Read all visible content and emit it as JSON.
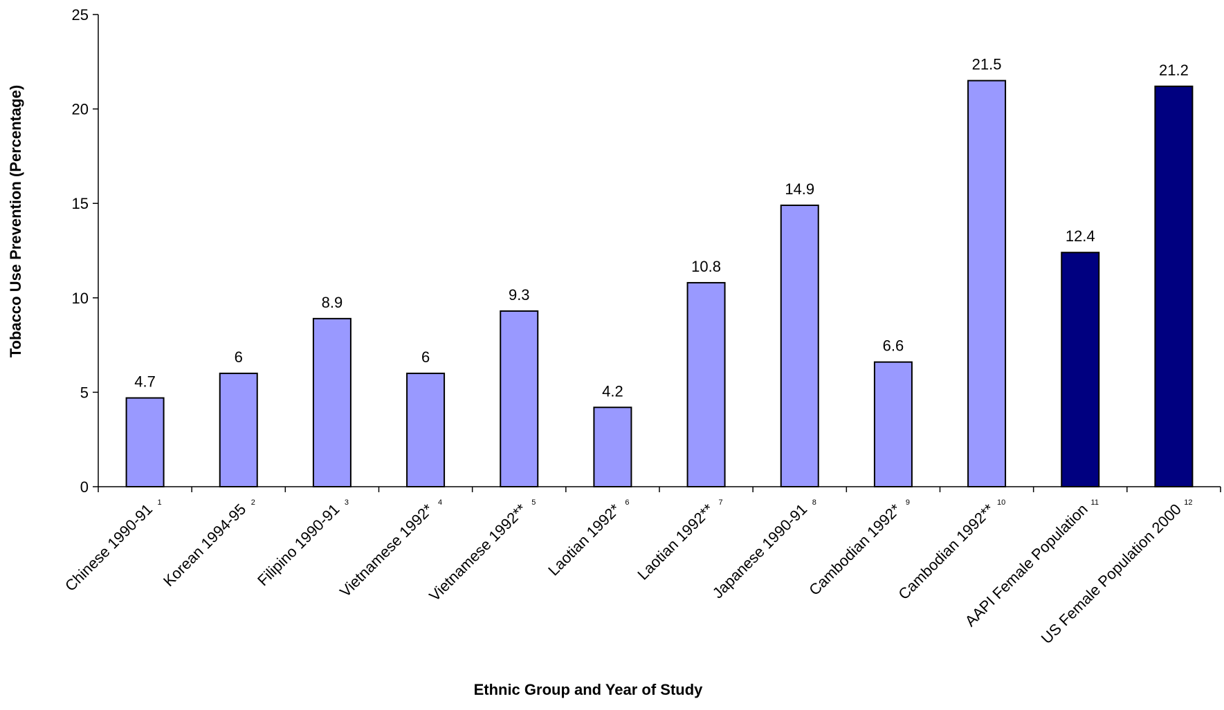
{
  "chart_data": {
    "type": "bar",
    "categories": [
      "Chinese 1990-91",
      "Korean 1994-95",
      "Filipino 1990-91",
      "Vietnamese 1992*",
      "Vietnamese 1992**",
      "Laotian 1992*",
      "Laotian 1992**",
      "Japanese 1990-91",
      "Cambodian 1992*",
      "Cambodian 1992**",
      "AAPI Female Population",
      "US Female Population 2000"
    ],
    "footnotes": [
      "1",
      "2",
      "3",
      "4",
      "5",
      "6",
      "7",
      "8",
      "9",
      "10",
      "11",
      "12"
    ],
    "values": [
      4.7,
      6,
      8.9,
      6,
      9.3,
      4.2,
      10.8,
      14.9,
      6.6,
      21.5,
      12.4,
      21.2
    ],
    "value_labels": [
      "4.7",
      "6",
      "8.9",
      "6",
      "9.3",
      "4.2",
      "10.8",
      "14.9",
      "6.6",
      "21.5",
      "12.4",
      "21.2"
    ],
    "bar_colors": [
      "#9999ff",
      "#9999ff",
      "#9999ff",
      "#9999ff",
      "#9999ff",
      "#9999ff",
      "#9999ff",
      "#9999ff",
      "#9999ff",
      "#9999ff",
      "#000080",
      "#000080"
    ],
    "title": "",
    "xlabel": "Ethnic Group and Year of Study",
    "ylabel": "Tobacco Use Prevention (Percentage)",
    "ylim": [
      0,
      25
    ],
    "yticks": [
      "0",
      "5",
      "10",
      "15",
      "20",
      "25"
    ],
    "grid": false,
    "legend": "none"
  }
}
